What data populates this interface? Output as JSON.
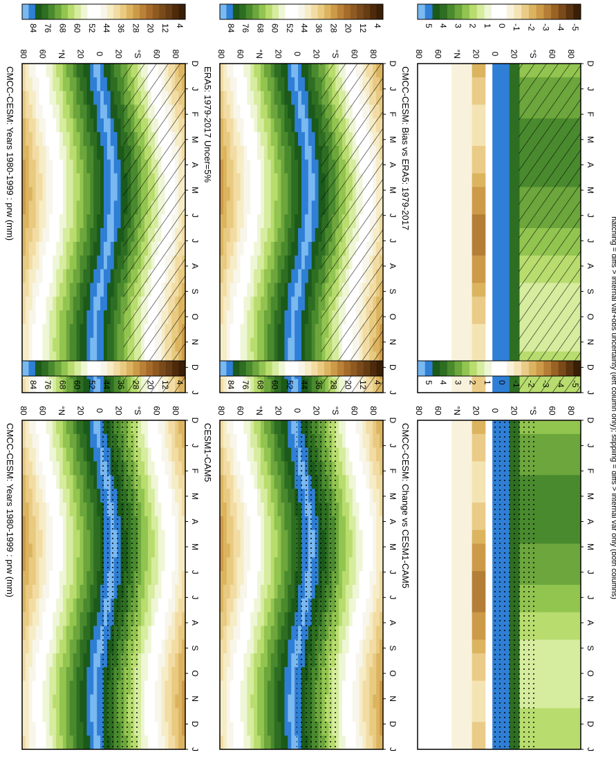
{
  "figure": {
    "footer": "hatching = diffs > internal var+obs uncertainty (left column only); stippling = diffs > internal var only (both columns)"
  },
  "palettes": {
    "abs": [
      "#3a1e06",
      "#4e2a0c",
      "#663c14",
      "#7a4a1a",
      "#8f5a22",
      "#a66b2a",
      "#ba8238",
      "#cc9a48",
      "#dcb460",
      "#e8ca80",
      "#f2dca4",
      "#f6ecc6",
      "#f8f6ea",
      "#ffffff",
      "#ffffff",
      "#eef6d6",
      "#d6ec9e",
      "#b8dc6e",
      "#92c450",
      "#6ca63c",
      "#4a8a2e",
      "#2e6e22",
      "#1b5a1a",
      "#2f7fd6",
      "#7ab8f0"
    ],
    "diff": [
      "#3a1e06",
      "#5a3410",
      "#7a4a1a",
      "#9a6224",
      "#b47e36",
      "#cc9a48",
      "#dcb460",
      "#eacc88",
      "#f4e4b4",
      "#f8f2dc",
      "#ffffff",
      "#ffffff",
      "#eef6d6",
      "#d6ec9e",
      "#b8dc6e",
      "#92c450",
      "#6ca63c",
      "#4a8a2e",
      "#2e6e22",
      "#1b5a1a",
      "#2f7fd6",
      "#7ab8f0"
    ]
  },
  "panels": [
    {
      "id": "p1",
      "title": "CMCC-CESM: Years 1980-1999 : prw (mm)",
      "kind": "abs",
      "hatch": true,
      "stipple": "few"
    },
    {
      "id": "p2",
      "title": "CMCC-CESM: Years 1980-1999 : prw (mm)",
      "kind": "abs",
      "hatch": false,
      "stipple": "dense"
    },
    {
      "id": "p3",
      "title": "ERA5: 1979-2017 Uncer=5%",
      "kind": "abs",
      "hatch": true,
      "stipple": "few"
    },
    {
      "id": "p4",
      "title": "CESM1-CAM5",
      "kind": "abs",
      "hatch": false,
      "stipple": "dense"
    },
    {
      "id": "p5",
      "title": "CMCC-CESM: Bias vs ERA5: 1979-2017",
      "kind": "diff",
      "hatch": true,
      "stipple": "few"
    },
    {
      "id": "p6",
      "title": "CMCC-CESM: Change vs CESM1-CAM5",
      "kind": "diff",
      "hatch": false,
      "stipple": "dense"
    }
  ],
  "colorbars": [
    {
      "id": "cb1",
      "labels": [
        "84",
        "76",
        "68",
        "60",
        "52",
        "44",
        "36",
        "28",
        "20",
        "12",
        "4"
      ]
    },
    {
      "id": "cb2",
      "labels": [
        "84",
        "76",
        "68",
        "60",
        "52",
        "44",
        "36",
        "28",
        "20",
        "12",
        "4"
      ]
    },
    {
      "id": "cb3",
      "labels": [
        "84",
        "76",
        "68",
        "60",
        "52",
        "44",
        "36",
        "28",
        "20",
        "12",
        "4"
      ]
    },
    {
      "id": "cb4",
      "labels": [
        "84",
        "76",
        "68",
        "60",
        "52",
        "44",
        "36",
        "28",
        "20",
        "12",
        "4"
      ]
    },
    {
      "id": "cb5",
      "labels": [
        "5",
        "4",
        "3",
        "2",
        "1",
        "0",
        "-1",
        "-2",
        "-3",
        "-4",
        "-5"
      ]
    },
    {
      "id": "cb6",
      "labels": [
        "5",
        "4",
        "3",
        "2",
        "1",
        "0",
        "-1",
        "-2",
        "-3",
        "-4",
        "-5"
      ]
    }
  ],
  "axes": {
    "lat_labels": [
      "80",
      "60",
      "°N",
      "20",
      "0",
      "20",
      "°S",
      "60",
      "80"
    ],
    "month_labels": [
      "D",
      "J",
      "F",
      "M",
      "A",
      "M",
      "J",
      "J",
      "A",
      "S",
      "O",
      "N",
      "D",
      "J"
    ]
  },
  "chart_data": {
    "type": "heatmap",
    "variable": "prw",
    "units": "mm",
    "x_axis": "latitude (80N to 80S)",
    "y_axis": "month",
    "abs_levels": [
      84,
      76,
      68,
      60,
      52,
      44,
      36,
      28,
      20,
      12,
      4
    ],
    "diff_levels": [
      5,
      4,
      3,
      2,
      1,
      0,
      -1,
      -2,
      -3,
      -4,
      -5
    ],
    "panels": [
      "CMCC-CESM: Years 1980-1999 : prw (mm)",
      "CMCC-CESM: Years 1980-1999 : prw (mm)",
      "ERA5: 1979-2017 Uncer=5%",
      "CESM1-CAM5",
      "CMCC-CESM: Bias vs ERA5: 1979-2017",
      "CMCC-CESM: Change vs CESM1-CAM5"
    ]
  }
}
